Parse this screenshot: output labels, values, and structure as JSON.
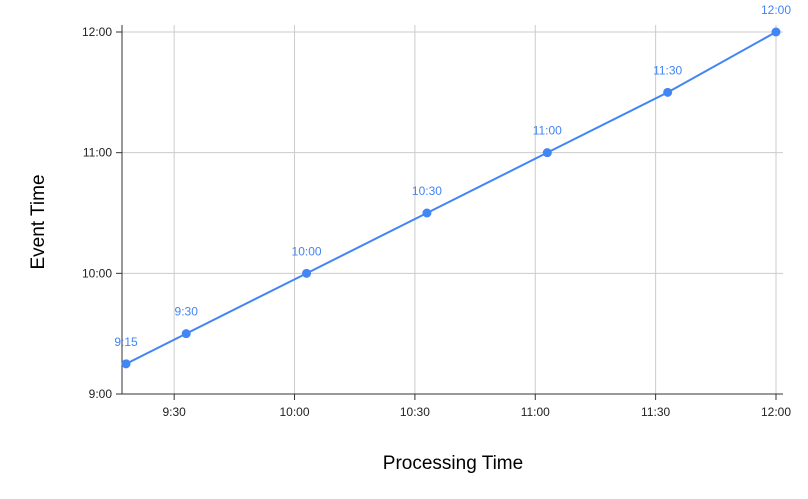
{
  "chart_data": {
    "type": "line",
    "title": "",
    "xlabel": "Processing Time",
    "ylabel": "Event Time",
    "x_ticks": [
      {
        "label": "9:30",
        "value": 570
      },
      {
        "label": "10:00",
        "value": 600
      },
      {
        "label": "10:30",
        "value": 630
      },
      {
        "label": "11:00",
        "value": 660
      },
      {
        "label": "11:30",
        "value": 690
      },
      {
        "label": "12:00",
        "value": 720
      }
    ],
    "y_ticks": [
      {
        "label": "9:00",
        "value": 540
      },
      {
        "label": "10:00",
        "value": 600
      },
      {
        "label": "11:00",
        "value": 660
      },
      {
        "label": "12:00",
        "value": 720
      }
    ],
    "xlim": [
      557,
      720
    ],
    "ylim": [
      540,
      720
    ],
    "series": [
      {
        "color": "#4285f4",
        "points": [
          {
            "x": 558,
            "y": 555,
            "label": "9:15"
          },
          {
            "x": 573,
            "y": 570,
            "label": "9:30"
          },
          {
            "x": 603,
            "y": 600,
            "label": "10:00"
          },
          {
            "x": 633,
            "y": 630,
            "label": "10:30"
          },
          {
            "x": 663,
            "y": 660,
            "label": "11:00"
          },
          {
            "x": 693,
            "y": 690,
            "label": "11:30"
          },
          {
            "x": 720,
            "y": 720,
            "label": "12:00"
          }
        ]
      }
    ],
    "grid": true,
    "legend": "none"
  }
}
